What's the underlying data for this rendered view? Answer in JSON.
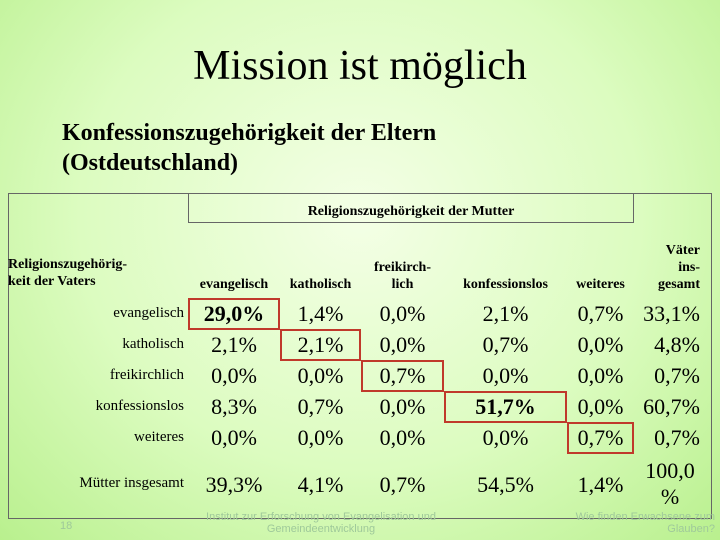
{
  "slide": {
    "title": "Mission ist möglich",
    "subtitle_line1": "Konfessionszugehörigkeit der Eltern",
    "subtitle_line2": "(Ostdeutschland)",
    "page_number": "18"
  },
  "table": {
    "mother_header": "Religionszugehörigkeit der Mutter",
    "father_header_line1": "Religionszugehörig-",
    "father_header_line2": "keit der Vaters",
    "columns": [
      {
        "line1": "",
        "line2": "evangelisch"
      },
      {
        "line1": "",
        "line2": "katholisch"
      },
      {
        "line1": "freikirch-",
        "line2": "lich"
      },
      {
        "line1": "",
        "line2": "konfessionslos"
      },
      {
        "line1": "",
        "line2": "weiteres"
      },
      {
        "line1": "Väter",
        "line1b": "ins-",
        "line2": "gesamt"
      }
    ],
    "rows": [
      {
        "label": "evangelisch",
        "values": [
          "29,0%",
          "1,4%",
          "0,0%",
          "2,1%",
          "0,7%",
          "33,1%"
        ]
      },
      {
        "label": "katholisch",
        "values": [
          "2,1%",
          "2,1%",
          "0,0%",
          "0,7%",
          "0,0%",
          "4,8%"
        ]
      },
      {
        "label": "freikirchlich",
        "values": [
          "0,0%",
          "0,0%",
          "0,7%",
          "0,0%",
          "0,0%",
          "0,7%"
        ]
      },
      {
        "label": "konfessionslos",
        "values": [
          "8,3%",
          "0,7%",
          "0,0%",
          "51,7%",
          "0,0%",
          "60,7%"
        ]
      },
      {
        "label": "weiteres",
        "values": [
          "0,0%",
          "0,0%",
          "0,0%",
          "0,0%",
          "0,7%",
          "0,7%"
        ]
      }
    ],
    "totals": {
      "label": "Mütter insgesamt",
      "values": [
        "39,3%",
        "4,1%",
        "0,7%",
        "54,5%",
        "1,4%"
      ],
      "total_line1": "100,0",
      "total_line2": "%"
    }
  },
  "footer": {
    "left_line1": "Institut zur Erforschung von Evangelisation und",
    "left_line2": "Gemeindeentwicklung",
    "right_line1": "Wie finden Erwachsene zum",
    "right_line2": "Glauben?"
  }
}
